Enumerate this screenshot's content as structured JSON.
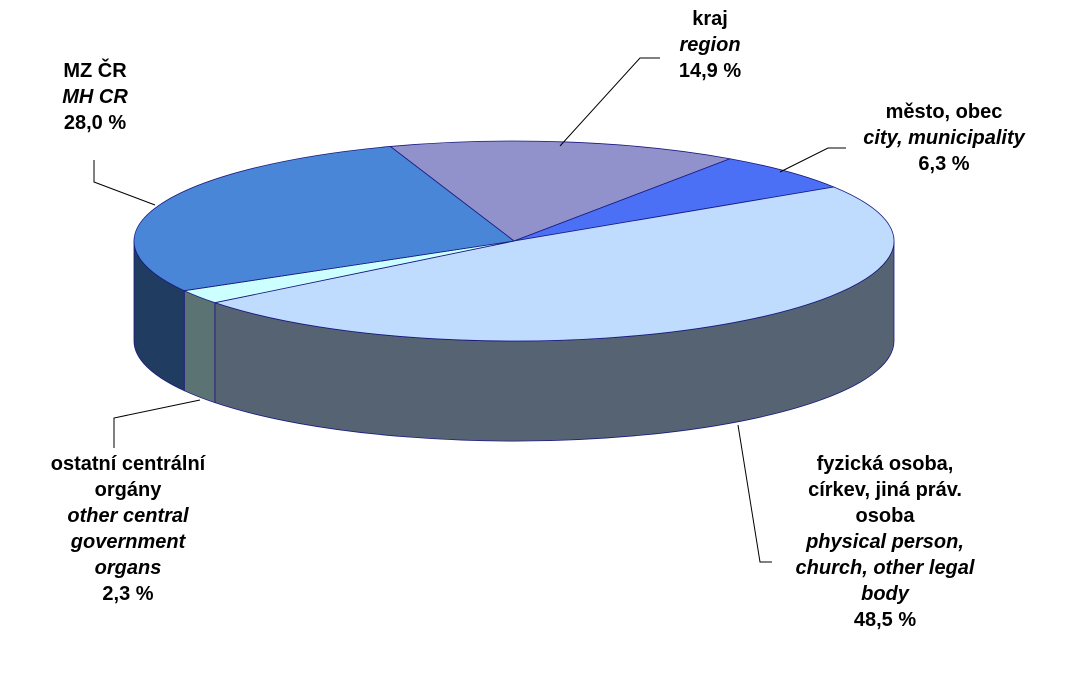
{
  "chart_data": {
    "type": "pie",
    "categories": [
      "kraj",
      "město, obec",
      "fyzická osoba, církev, jiná práv. osoba",
      "ostatní centrální orgány",
      "MZ ČR"
    ],
    "categories_en": [
      "region",
      "city, municipality",
      "physical person, church, other legal body",
      "other central government organs",
      "MH CR"
    ],
    "values": [
      14.9,
      6.3,
      48.5,
      2.3,
      28.0
    ],
    "value_labels": [
      "14,9 %",
      "6,3 %",
      "48,5 %",
      "2,3 %",
      "28,0 %"
    ],
    "colors": [
      "#9191cc",
      "#4b70f5",
      "#bfdcff",
      "#ccffff",
      "#4a86d8"
    ]
  }
}
